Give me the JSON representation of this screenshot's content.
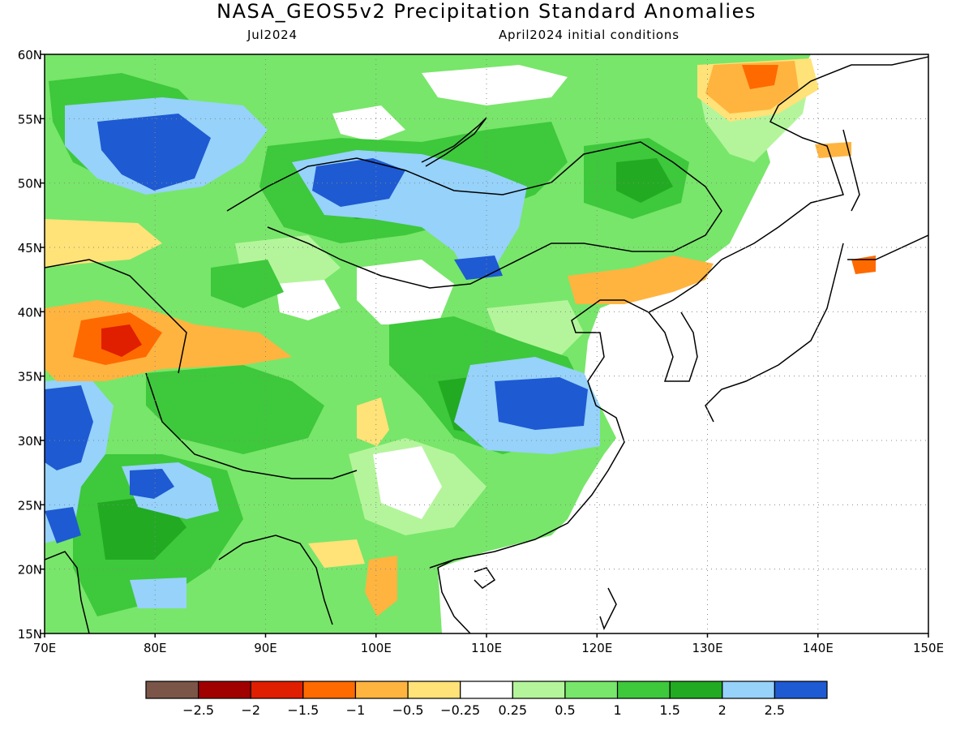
{
  "title": "NASA_GEOS5v2 Precipitation Standard Anomalies",
  "subtitle_left": "Jul2024",
  "subtitle_right": "April2024 initial conditions",
  "axes": {
    "lon_min": 70,
    "lon_max": 150,
    "lat_min": 15,
    "lat_max": 60,
    "x_ticks": [
      "70E",
      "80E",
      "90E",
      "100E",
      "110E",
      "120E",
      "130E",
      "140E",
      "150E"
    ],
    "y_ticks": [
      "60N",
      "55N",
      "50N",
      "45N",
      "40N",
      "35N",
      "30N",
      "25N",
      "20N",
      "15N"
    ],
    "grid": "dotted"
  },
  "colorbar": {
    "colors": [
      "#7a5548",
      "#a00000",
      "#e01e00",
      "#ff6a00",
      "#ffb440",
      "#ffe278",
      "#ffffff",
      "#b4f59c",
      "#78e66a",
      "#3ec83c",
      "#22aa22",
      "#96d2fa",
      "#1e5ad2"
    ],
    "labels": [
      "-2.5",
      "-2",
      "-1.5",
      "-1",
      "-0.5",
      "-0.25",
      "0.25",
      "0.5",
      "1",
      "1.5",
      "2",
      "2.5"
    ]
  }
}
